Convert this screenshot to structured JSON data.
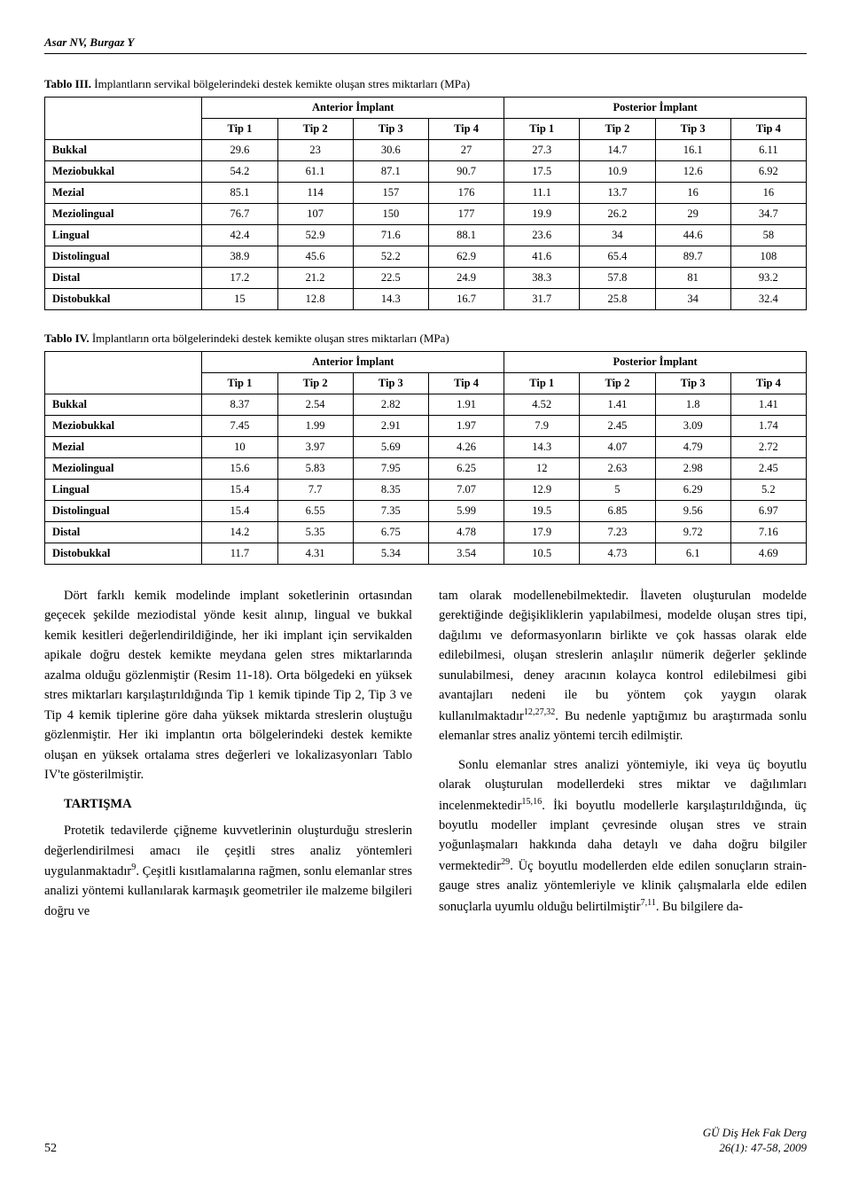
{
  "header": {
    "authors": "Asar NV, Burgaz Y"
  },
  "table3": {
    "caption_label": "Tablo III.",
    "caption_text": " İmplantların servikal bölgelerindeki destek kemikte oluşan stres miktarları (MPa)",
    "group_headers": [
      "Anterior İmplant",
      "Posterior İmplant"
    ],
    "tip_headers": [
      "Tip 1",
      "Tip 2",
      "Tip 3",
      "Tip 4",
      "Tip 1",
      "Tip 2",
      "Tip 3",
      "Tip 4"
    ],
    "rows": [
      {
        "label": "Bukkal",
        "v": [
          "29.6",
          "23",
          "30.6",
          "27",
          "27.3",
          "14.7",
          "16.1",
          "6.11"
        ]
      },
      {
        "label": "Meziobukkal",
        "v": [
          "54.2",
          "61.1",
          "87.1",
          "90.7",
          "17.5",
          "10.9",
          "12.6",
          "6.92"
        ]
      },
      {
        "label": "Mezial",
        "v": [
          "85.1",
          "114",
          "157",
          "176",
          "11.1",
          "13.7",
          "16",
          "16"
        ]
      },
      {
        "label": "Meziolingual",
        "v": [
          "76.7",
          "107",
          "150",
          "177",
          "19.9",
          "26.2",
          "29",
          "34.7"
        ]
      },
      {
        "label": "Lingual",
        "v": [
          "42.4",
          "52.9",
          "71.6",
          "88.1",
          "23.6",
          "34",
          "44.6",
          "58"
        ]
      },
      {
        "label": "Distolingual",
        "v": [
          "38.9",
          "45.6",
          "52.2",
          "62.9",
          "41.6",
          "65.4",
          "89.7",
          "108"
        ]
      },
      {
        "label": "Distal",
        "v": [
          "17.2",
          "21.2",
          "22.5",
          "24.9",
          "38.3",
          "57.8",
          "81",
          "93.2"
        ]
      },
      {
        "label": "Distobukkal",
        "v": [
          "15",
          "12.8",
          "14.3",
          "16.7",
          "31.7",
          "25.8",
          "34",
          "32.4"
        ]
      }
    ]
  },
  "table4": {
    "caption_label": "Tablo IV.",
    "caption_text": " İmplantların orta bölgelerindeki destek kemikte oluşan stres miktarları (MPa)",
    "group_headers": [
      "Anterior İmplant",
      "Posterior İmplant"
    ],
    "tip_headers": [
      "Tip 1",
      "Tip 2",
      "Tip 3",
      "Tip 4",
      "Tip 1",
      "Tip 2",
      "Tip 3",
      "Tip 4"
    ],
    "rows": [
      {
        "label": "Bukkal",
        "v": [
          "8.37",
          "2.54",
          "2.82",
          "1.91",
          "4.52",
          "1.41",
          "1.8",
          "1.41"
        ]
      },
      {
        "label": "Meziobukkal",
        "v": [
          "7.45",
          "1.99",
          "2.91",
          "1.97",
          "7.9",
          "2.45",
          "3.09",
          "1.74"
        ]
      },
      {
        "label": "Mezial",
        "v": [
          "10",
          "3.97",
          "5.69",
          "4.26",
          "14.3",
          "4.07",
          "4.79",
          "2.72"
        ]
      },
      {
        "label": "Meziolingual",
        "v": [
          "15.6",
          "5.83",
          "7.95",
          "6.25",
          "12",
          "2.63",
          "2.98",
          "2.45"
        ]
      },
      {
        "label": "Lingual",
        "v": [
          "15.4",
          "7.7",
          "8.35",
          "7.07",
          "12.9",
          "5",
          "6.29",
          "5.2"
        ]
      },
      {
        "label": "Distolingual",
        "v": [
          "15.4",
          "6.55",
          "7.35",
          "5.99",
          "19.5",
          "6.85",
          "9.56",
          "6.97"
        ]
      },
      {
        "label": "Distal",
        "v": [
          "14.2",
          "5.35",
          "6.75",
          "4.78",
          "17.9",
          "7.23",
          "9.72",
          "7.16"
        ]
      },
      {
        "label": "Distobukkal",
        "v": [
          "11.7",
          "4.31",
          "5.34",
          "3.54",
          "10.5",
          "4.73",
          "6.1",
          "4.69"
        ]
      }
    ]
  },
  "body": {
    "left": {
      "p1": "Dört farklı kemik modelinde implant soketlerinin ortasından geçecek şekilde meziodistal yönde kesit alınıp, lingual ve bukkal kemik kesitleri değerlendirildiğinde, her iki implant için servikalden apikale doğru destek kemikte meydana gelen stres miktarlarında azalma olduğu gözlenmiştir (Resim 11-18). Orta bölgedeki en yüksek stres miktarları karşılaştırıldığında Tip 1 kemik tipinde Tip 2, Tip 3 ve Tip 4 kemik tiplerine göre daha yüksek miktarda streslerin oluştuğu gözlenmiştir. Her iki implantın orta bölgelerindeki destek kemikte oluşan en yüksek ortalama stres değerleri ve lokalizasyonları Tablo IV'te gösterilmiştir.",
      "heading": "TARTIŞMA",
      "p2a": "Protetik tedavilerde çiğneme kuvvetlerinin oluşturduğu streslerin değerlendirilmesi amacı ile çeşitli stres analiz yöntemleri uygulanmaktadır",
      "p2sup": "9",
      "p2b": ". Çeşitli kısıtlamalarına rağmen, sonlu elemanlar stres analizi yöntemi kullanılarak karmaşık geometriler ile malzeme bilgileri doğru ve"
    },
    "right": {
      "p1a": "tam olarak modellenebilmektedir. İlaveten oluşturulan modelde gerektiğinde değişikliklerin yapılabilmesi, modelde oluşan stres tipi, dağılımı ve deformasyonların birlikte ve çok hassas olarak elde edilebilmesi, oluşan streslerin anlaşılır nümerik değerler şeklinde sunulabilmesi, deney aracının kolayca kontrol edilebilmesi gibi avantajları nedeni ile bu yöntem çok yaygın olarak kullanılmaktadır",
      "p1sup": "12,27,32",
      "p1b": ". Bu nedenle yaptığımız bu araştırmada sonlu elemanlar stres analiz yöntemi tercih edilmiştir.",
      "p2a": "Sonlu elemanlar stres analizi yöntemiyle, iki veya üç boyutlu olarak oluşturulan modellerdeki stres miktar ve dağılımları incelenmektedir",
      "p2sup1": "15,16",
      "p2b": ". İki boyutlu modellerle karşılaştırıldığında, üç boyutlu modeller implant çevresinde oluşan stres ve strain yoğunlaşmaları hakkında daha detaylı ve daha doğru bilgiler vermektedir",
      "p2sup2": "29",
      "p2c": ". Üç boyutlu modellerden elde edilen sonuçların strain-gauge stres analiz yöntemleriyle ve klinik çalışmalarla elde edilen sonuçlarla uyumlu olduğu belirtilmiştir",
      "p2sup3": "7,11",
      "p2d": ". Bu bilgilere da-"
    }
  },
  "footer": {
    "page": "52",
    "journal_line1": "GÜ Diş Hek Fak Derg",
    "journal_line2": "26(1): 47-58, 2009"
  }
}
